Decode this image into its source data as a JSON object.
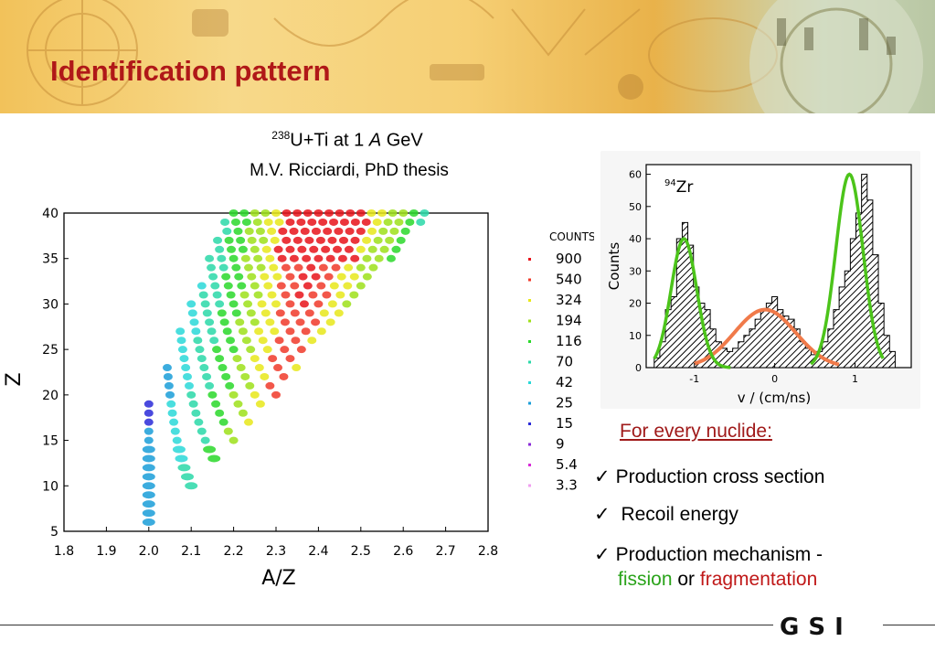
{
  "slide": {
    "title": "Identification pattern",
    "reaction_sup": "238",
    "reaction_pre": "U+Ti at 1 ",
    "reaction_italic": "A",
    "reaction_post": " GeV",
    "source": "M.V. Ricciardi, PhD thesis"
  },
  "scatter": {
    "xlabel": "A/Z",
    "ylabel": "Z",
    "xticks": [
      "1.8",
      "1.9",
      "2.0",
      "2.1",
      "2.2",
      "2.3",
      "2.4",
      "2.5",
      "2.6",
      "2.7",
      "2.8"
    ],
    "yticks": [
      "40",
      "35",
      "30",
      "25",
      "20",
      "15",
      "10",
      "5"
    ],
    "legend_title": "COUNTS",
    "legend": [
      {
        "label": "900",
        "color": "#e8131a"
      },
      {
        "label": "540",
        "color": "#f03a2a"
      },
      {
        "label": "324",
        "color": "#e8e81a"
      },
      {
        "label": "194",
        "color": "#9ee01a"
      },
      {
        "label": "116",
        "color": "#2ad82a"
      },
      {
        "label": "70",
        "color": "#2ad8a8"
      },
      {
        "label": "42",
        "color": "#2ad8d8"
      },
      {
        "label": "25",
        "color": "#1a9ed8"
      },
      {
        "label": "15",
        "color": "#2a2ad8"
      },
      {
        "label": "9",
        "color": "#8a2ad8"
      },
      {
        "label": "5.4",
        "color": "#d82ad8"
      },
      {
        "label": "3.3",
        "color": "#f09ef0"
      }
    ]
  },
  "chart_data": {
    "type": "heatmap",
    "xlabel": "A/Z",
    "ylabel": "Z",
    "xlim": [
      1.8,
      2.8
    ],
    "ylim": [
      5,
      40
    ]
  },
  "histogram": {
    "label": "94Zr",
    "label_sup": "94",
    "label_main": "Zr",
    "xlabel": "v  / (cm/ns)",
    "ylabel": "Counts",
    "xticks": [
      "-1",
      "0",
      "1"
    ],
    "yticks": [
      "60",
      "50",
      "40",
      "30",
      "20",
      "10",
      "0"
    ],
    "fission_color": "#4cc41a",
    "fragmentation_color": "#f07a4a"
  },
  "notes": {
    "heading": "For every nuclide:",
    "check": "✓",
    "item1": "Production cross section",
    "item2": " Recoil energy",
    "item3": "Production mechanism -",
    "fission": "fission",
    "or": " or ",
    "fragmentation": "fragmentation"
  },
  "logo": {
    "text": "GSI"
  }
}
